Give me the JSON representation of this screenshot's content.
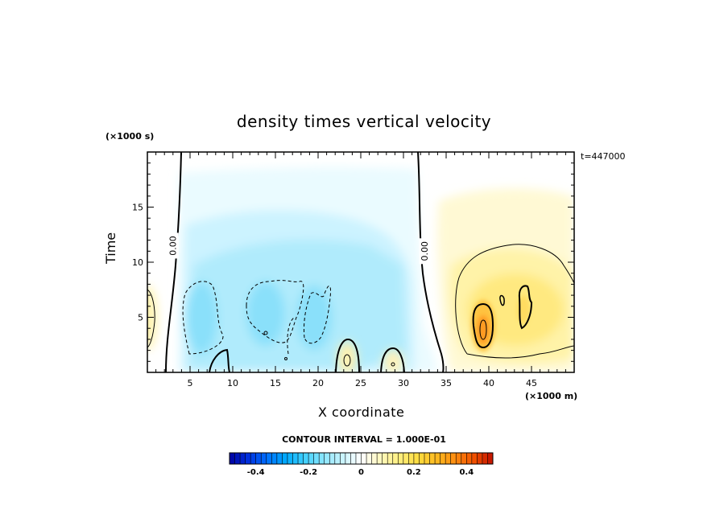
{
  "chart_data": {
    "type": "heatmap",
    "title": "density times vertical velocity",
    "xlabel": "X coordinate",
    "ylabel": "Time",
    "x_unit": "(×1000 m)",
    "y_unit": "(×1000 s)",
    "time_stamp": "t=447000",
    "contour_interval": "CONTOUR INTERVAL = 1.000E-01",
    "xlim": [
      0,
      50
    ],
    "ylim": [
      0,
      20
    ],
    "x_ticks": [
      5,
      10,
      15,
      20,
      25,
      30,
      35,
      40,
      45
    ],
    "y_ticks": [
      5,
      10,
      15
    ],
    "contour_labels": [
      {
        "text": "0.00",
        "x": 3.0,
        "y": 11.5
      },
      {
        "text": "0.00",
        "x": 32.5,
        "y": 11.0
      }
    ],
    "features": [
      {
        "kind": "negative",
        "x": 7,
        "y": 5.5,
        "value": -0.12
      },
      {
        "kind": "negative",
        "x": 14.5,
        "y": 5.5,
        "value": -0.13
      },
      {
        "kind": "negative",
        "x": 19.5,
        "y": 5.5,
        "value": -0.13
      },
      {
        "kind": "negative",
        "x": 18,
        "y": 11.5,
        "value": -0.07
      },
      {
        "kind": "positive",
        "x": 39,
        "y": 3.5,
        "value": 0.33
      },
      {
        "kind": "positive",
        "x": 44.5,
        "y": 5.5,
        "value": 0.15
      },
      {
        "kind": "positive",
        "x": 42,
        "y": 9,
        "value": 0.1
      },
      {
        "kind": "positive",
        "x": 23.5,
        "y": 1.5,
        "value": 0.08
      },
      {
        "kind": "positive",
        "x": 28.5,
        "y": 1.2,
        "value": 0.06
      },
      {
        "kind": "positive",
        "x": 0.5,
        "y": 5.5,
        "value": 0.06
      }
    ],
    "colorbar": {
      "min": -0.5,
      "max": 0.5,
      "tick_values": [
        -0.4,
        -0.2,
        0,
        0.2,
        0.4
      ],
      "tick_labels": [
        "-0.4",
        "-0.2",
        "0",
        "0.2",
        "0.4"
      ],
      "colors": [
        "#0000a0",
        "#0030e0",
        "#0070ff",
        "#00aaff",
        "#40d0ff",
        "#8ce6ff",
        "#c8f4ff",
        "#ffffff",
        "#fff8c0",
        "#ffef80",
        "#ffdd40",
        "#ffbb20",
        "#ff8c10",
        "#f05000",
        "#c01000"
      ]
    }
  }
}
